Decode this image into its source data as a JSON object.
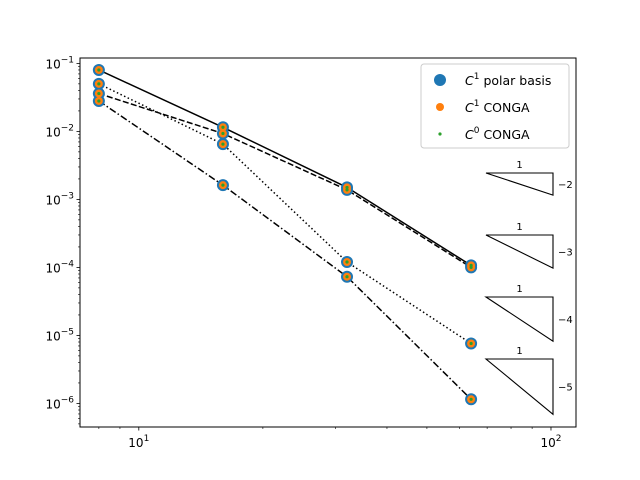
{
  "chart_data": {
    "type": "scatter",
    "xscale": "log",
    "yscale": "log",
    "xlim": [
      7.2,
      115
    ],
    "ylim": [
      4.5e-07,
      0.12
    ],
    "x": [
      8,
      16,
      32,
      64
    ],
    "x_ticks": [
      {
        "value": 10,
        "base": "10",
        "exp": "1"
      },
      {
        "value": 100,
        "base": "10",
        "exp": "2"
      }
    ],
    "y_ticks": [
      {
        "value": 1e-06,
        "base": "10",
        "exp": "−6"
      },
      {
        "value": 1e-05,
        "base": "10",
        "exp": "−5"
      },
      {
        "value": 0.0001,
        "base": "10",
        "exp": "−4"
      },
      {
        "value": 0.001,
        "base": "10",
        "exp": "−3"
      },
      {
        "value": 0.01,
        "base": "10",
        "exp": "−2"
      },
      {
        "value": 0.1,
        "base": "10",
        "exp": "−1"
      }
    ],
    "lines": [
      {
        "style": "solid",
        "values": [
          0.08,
          0.0115,
          0.0015,
          0.000107
        ]
      },
      {
        "style": "dashed",
        "values": [
          0.036,
          0.0093,
          0.00138,
          0.0001
        ]
      },
      {
        "style": "dotted",
        "values": [
          0.05,
          0.0065,
          0.00012,
          7.6e-06
        ]
      },
      {
        "style": "dashdot",
        "values": [
          0.028,
          0.00162,
          7.3e-05,
          1.15e-06
        ]
      }
    ],
    "series": [
      {
        "name_base": "C",
        "name_sup": "1",
        "name_rest": " polar basis",
        "color": "#1f77b4",
        "marker_size": 6
      },
      {
        "name_base": "C",
        "name_sup": "1",
        "name_rest": " CONGA",
        "color": "#ff7f0e",
        "marker_size": 4
      },
      {
        "name_base": "C",
        "name_sup": "0",
        "name_rest": " CONGA",
        "color": "#2ca02c",
        "marker_size": 1.6
      }
    ],
    "legend_position": "upper right",
    "slope_triangles": [
      {
        "top_label": "1",
        "side_label": "−2",
        "slope": -2
      },
      {
        "top_label": "1",
        "side_label": "−3",
        "slope": -3
      },
      {
        "top_label": "1",
        "side_label": "−4",
        "slope": -4
      },
      {
        "top_label": "1",
        "side_label": "−5",
        "slope": -5
      }
    ]
  }
}
